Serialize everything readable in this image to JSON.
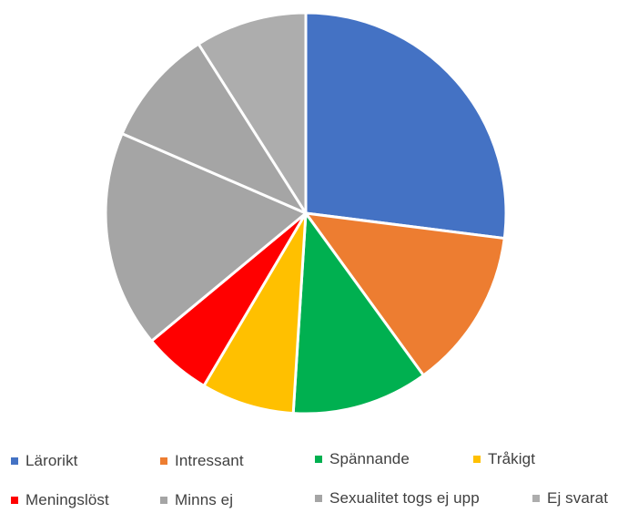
{
  "chart_data": {
    "type": "pie",
    "title": "",
    "legend_position": "bottom",
    "slices": [
      {
        "label": "Lärorikt",
        "value": 27,
        "color": "#4472C4"
      },
      {
        "label": "Intressant",
        "value": 13,
        "color": "#ED7D31"
      },
      {
        "label": "Spännande",
        "value": 11,
        "color": "#00B050"
      },
      {
        "label": "Tråkigt",
        "value": 7.5,
        "color": "#FFC000"
      },
      {
        "label": "Meningslöst",
        "value": 5.5,
        "color": "#FF0000"
      },
      {
        "label": "Minns ej",
        "value": 17.5,
        "color": "#A5A5A5"
      },
      {
        "label": "Sexualitet togs ej upp",
        "value": 9.5,
        "color": "#A5A5A5"
      },
      {
        "label": "Ej svarat",
        "value": 9,
        "color": "#ADADAD"
      }
    ]
  }
}
